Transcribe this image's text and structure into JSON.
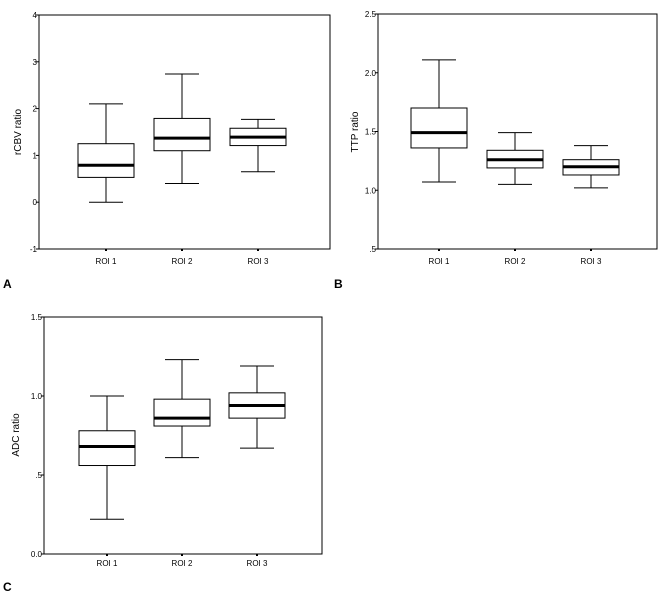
{
  "chart_data": [
    {
      "panel_label": "A",
      "type": "boxplot",
      "ylabel": "rCBV ratio",
      "ylim": [
        -1,
        4
      ],
      "yticks": [
        -1,
        0,
        1,
        2,
        3,
        4
      ],
      "ytick_labels": [
        "-1",
        "0",
        "1",
        "2",
        "3",
        "4"
      ],
      "categories": [
        "ROI 1",
        "ROI 2",
        "ROI 3"
      ],
      "boxes": [
        {
          "min": 0.0,
          "q1": 0.53,
          "median": 0.79,
          "q3": 1.25,
          "max": 2.1
        },
        {
          "min": 0.4,
          "q1": 1.1,
          "median": 1.37,
          "q3": 1.79,
          "max": 2.74
        },
        {
          "min": 0.65,
          "q1": 1.21,
          "median": 1.39,
          "q3": 1.58,
          "max": 1.77
        }
      ],
      "grid": false,
      "legend": "none"
    },
    {
      "panel_label": "B",
      "type": "boxplot",
      "ylabel": "TTP ratio",
      "ylim": [
        0.5,
        2.5
      ],
      "yticks": [
        0.5,
        1.0,
        1.5,
        2.0,
        2.5
      ],
      "ytick_labels": [
        ".5",
        "1.0",
        "1.5",
        "2.0",
        "2.5"
      ],
      "categories": [
        "ROI 1",
        "ROI 2",
        "ROI 3"
      ],
      "boxes": [
        {
          "min": 1.07,
          "q1": 1.36,
          "median": 1.49,
          "q3": 1.7,
          "max": 2.11
        },
        {
          "min": 1.05,
          "q1": 1.19,
          "median": 1.26,
          "q3": 1.34,
          "max": 1.49
        },
        {
          "min": 1.02,
          "q1": 1.13,
          "median": 1.2,
          "q3": 1.26,
          "max": 1.38
        }
      ],
      "grid": false,
      "legend": "none"
    },
    {
      "panel_label": "C",
      "type": "boxplot",
      "ylabel": "ADC ratio",
      "ylim": [
        0.0,
        1.5
      ],
      "yticks": [
        0.0,
        0.5,
        1.0,
        1.5
      ],
      "ytick_labels": [
        "0.0",
        ".5",
        "1.0",
        "1.5"
      ],
      "categories": [
        "ROI 1",
        "ROI 2",
        "ROI 3"
      ],
      "boxes": [
        {
          "min": 0.22,
          "q1": 0.56,
          "median": 0.68,
          "q3": 0.78,
          "max": 1.0
        },
        {
          "min": 0.61,
          "q1": 0.81,
          "median": 0.86,
          "q3": 0.98,
          "max": 1.23
        },
        {
          "min": 0.67,
          "q1": 0.86,
          "median": 0.94,
          "q3": 1.02,
          "max": 1.19
        }
      ],
      "grid": false,
      "legend": "none"
    }
  ]
}
